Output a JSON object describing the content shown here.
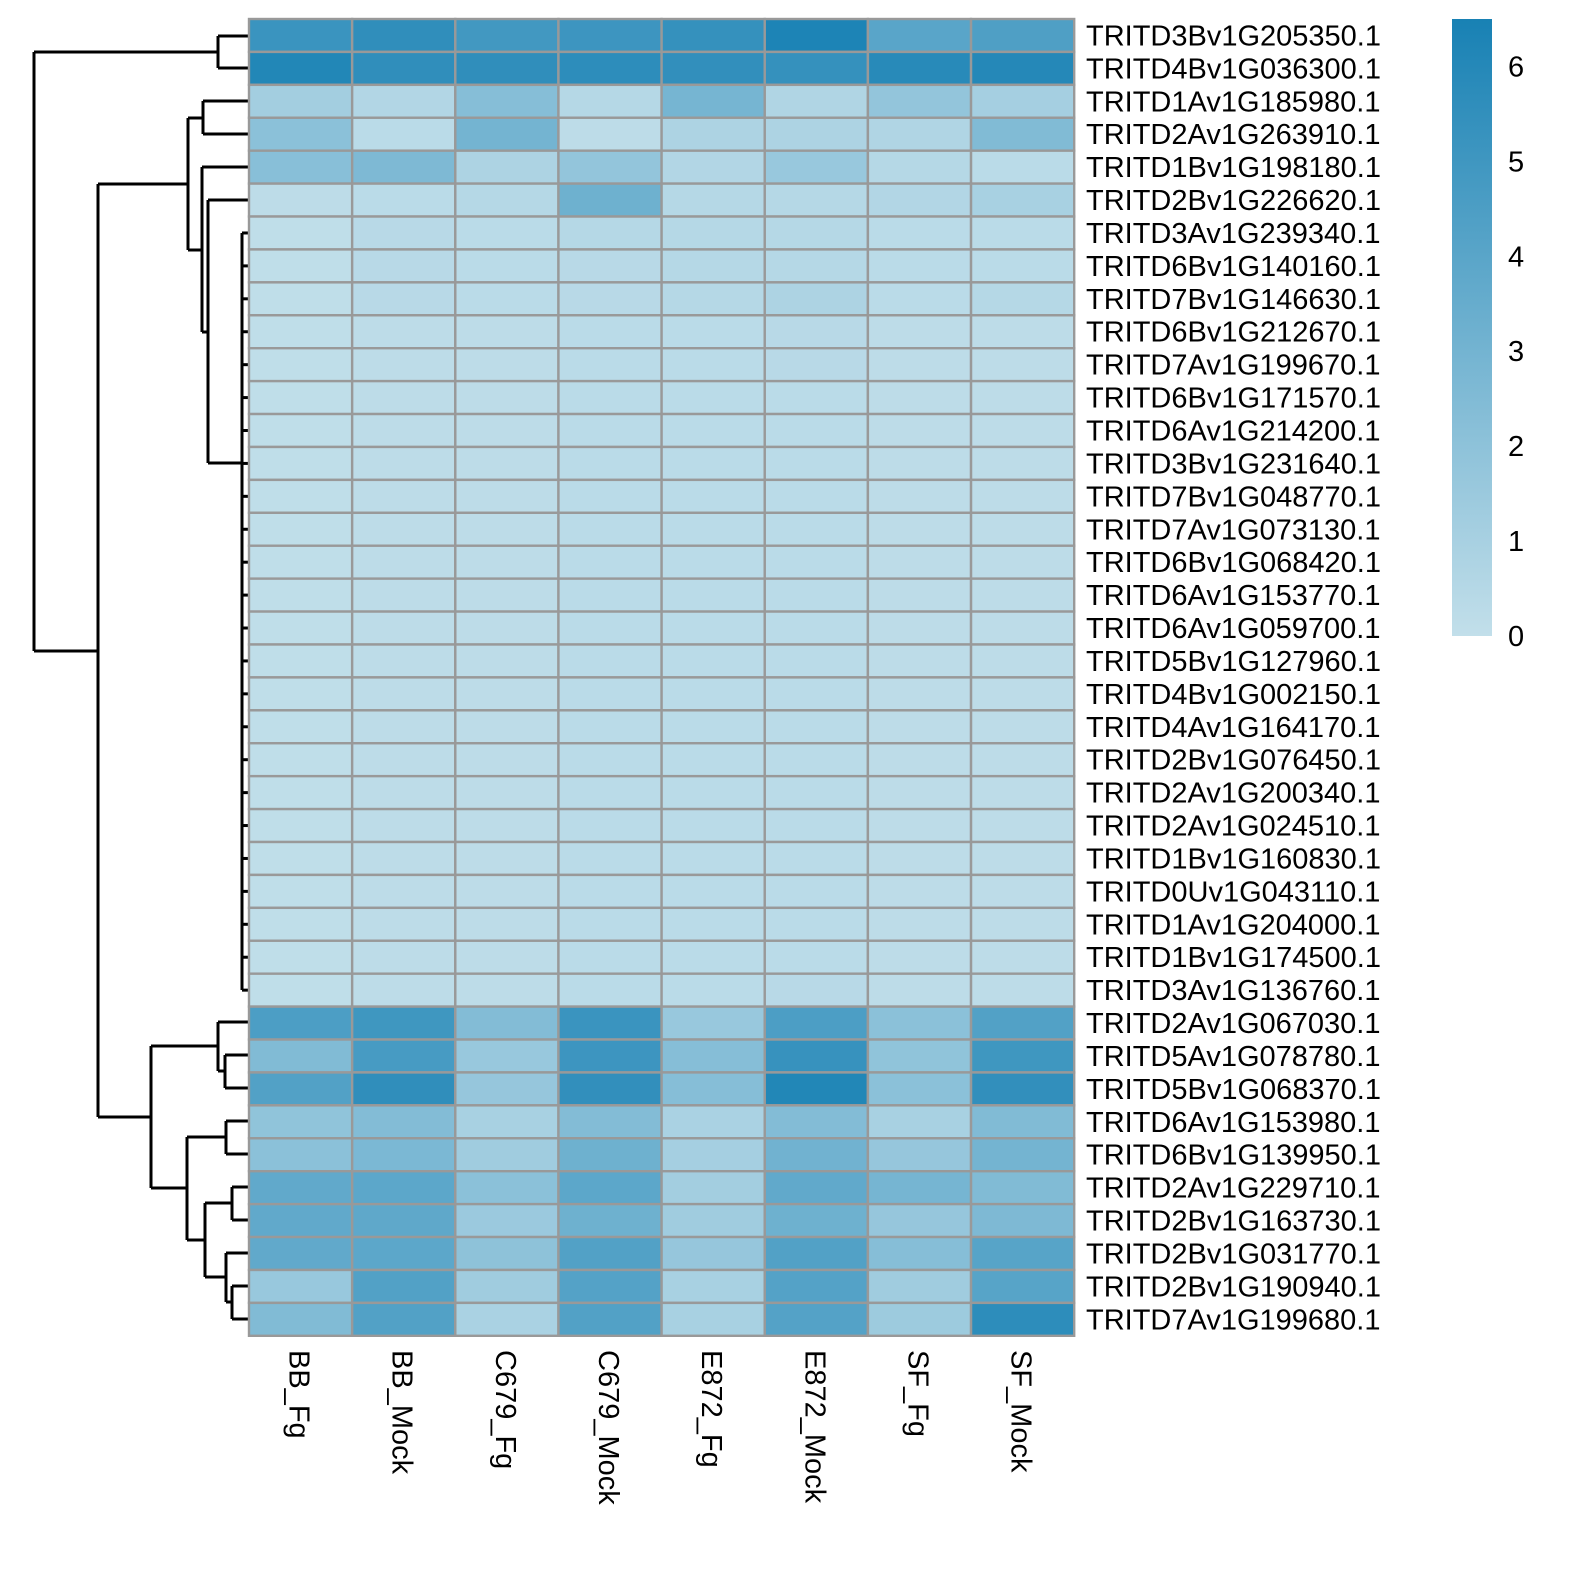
{
  "chart_data": {
    "type": "heatmap",
    "columns": [
      "BB_Fg",
      "BB_Mock",
      "C679_Fg",
      "C679_Mock",
      "E872_Fg",
      "E872_Mock",
      "SF_Fg",
      "SF_Mock"
    ],
    "rows": [
      "TRITD3Bv1G205350.1",
      "TRITD4Bv1G036300.1",
      "TRITD1Av1G185980.1",
      "TRITD2Av1G263910.1",
      "TRITD1Bv1G198180.1",
      "TRITD2Bv1G226620.1",
      "TRITD3Av1G239340.1",
      "TRITD6Bv1G140160.1",
      "TRITD7Bv1G146630.1",
      "TRITD6Bv1G212670.1",
      "TRITD7Av1G199670.1",
      "TRITD6Bv1G171570.1",
      "TRITD6Av1G214200.1",
      "TRITD3Bv1G231640.1",
      "TRITD7Bv1G048770.1",
      "TRITD7Av1G073130.1",
      "TRITD6Bv1G068420.1",
      "TRITD6Av1G153770.1",
      "TRITD6Av1G059700.1",
      "TRITD5Bv1G127960.1",
      "TRITD4Bv1G002150.1",
      "TRITD4Av1G164170.1",
      "TRITD2Bv1G076450.1",
      "TRITD2Av1G200340.1",
      "TRITD2Av1G024510.1",
      "TRITD1Bv1G160830.1",
      "TRITD0Uv1G043110.1",
      "TRITD1Av1G204000.1",
      "TRITD1Bv1G174500.1",
      "TRITD3Av1G136760.1",
      "TRITD2Av1G067030.1",
      "TRITD5Av1G078780.1",
      "TRITD5Bv1G068370.1",
      "TRITD6Av1G153980.1",
      "TRITD6Bv1G139950.1",
      "TRITD2Av1G229710.1",
      "TRITD2Bv1G163730.1",
      "TRITD2Bv1G031770.1",
      "TRITD2Bv1G190940.1",
      "TRITD7Av1G199680.1"
    ],
    "values": [
      [
        5.2,
        5.6,
        4.9,
        5.1,
        5.4,
        6.3,
        4.0,
        4.4
      ],
      [
        6.1,
        5.6,
        5.6,
        5.7,
        5.5,
        5.4,
        5.9,
        6.0
      ],
      [
        1.2,
        0.6,
        2.3,
        0.5,
        2.9,
        0.7,
        1.8,
        1.1
      ],
      [
        2.1,
        0.3,
        3.0,
        0.2,
        0.8,
        0.8,
        0.7,
        2.5
      ],
      [
        2.2,
        2.6,
        0.8,
        1.8,
        0.6,
        1.6,
        0.5,
        0.3
      ],
      [
        0.2,
        0.3,
        0.5,
        3.2,
        0.5,
        0.5,
        0.6,
        1.0
      ],
      [
        0.1,
        0.4,
        0.3,
        0.5,
        0.5,
        0.5,
        0.3,
        0.3
      ],
      [
        0.1,
        0.4,
        0.3,
        0.4,
        0.5,
        0.5,
        0.3,
        0.3
      ],
      [
        0.1,
        0.4,
        0.3,
        0.4,
        0.5,
        0.8,
        0.3,
        0.5
      ],
      [
        0.1,
        0.2,
        0.2,
        0.3,
        0.3,
        0.4,
        0.2,
        0.2
      ],
      [
        0.1,
        0.2,
        0.2,
        0.3,
        0.3,
        0.4,
        0.2,
        0.2
      ],
      [
        0.1,
        0.2,
        0.2,
        0.3,
        0.3,
        0.3,
        0.2,
        0.2
      ],
      [
        0.1,
        0.2,
        0.2,
        0.3,
        0.3,
        0.3,
        0.2,
        0.2
      ],
      [
        0.1,
        0.2,
        0.2,
        0.3,
        0.3,
        0.3,
        0.2,
        0.2
      ],
      [
        0.1,
        0.2,
        0.2,
        0.3,
        0.3,
        0.3,
        0.2,
        0.2
      ],
      [
        0.1,
        0.2,
        0.2,
        0.3,
        0.3,
        0.3,
        0.2,
        0.2
      ],
      [
        0.1,
        0.2,
        0.2,
        0.3,
        0.3,
        0.3,
        0.2,
        0.2
      ],
      [
        0.1,
        0.2,
        0.2,
        0.3,
        0.3,
        0.3,
        0.2,
        0.2
      ],
      [
        0.1,
        0.2,
        0.2,
        0.3,
        0.3,
        0.3,
        0.2,
        0.2
      ],
      [
        0.1,
        0.2,
        0.2,
        0.3,
        0.3,
        0.3,
        0.2,
        0.2
      ],
      [
        0.1,
        0.2,
        0.2,
        0.3,
        0.3,
        0.3,
        0.2,
        0.2
      ],
      [
        0.1,
        0.2,
        0.2,
        0.3,
        0.3,
        0.3,
        0.2,
        0.2
      ],
      [
        0.1,
        0.2,
        0.2,
        0.3,
        0.3,
        0.3,
        0.2,
        0.2
      ],
      [
        0.1,
        0.2,
        0.2,
        0.3,
        0.3,
        0.3,
        0.2,
        0.2
      ],
      [
        0.1,
        0.2,
        0.2,
        0.3,
        0.3,
        0.3,
        0.2,
        0.2
      ],
      [
        0.1,
        0.2,
        0.2,
        0.3,
        0.3,
        0.3,
        0.2,
        0.2
      ],
      [
        0.1,
        0.2,
        0.2,
        0.3,
        0.3,
        0.3,
        0.2,
        0.2
      ],
      [
        0.1,
        0.2,
        0.2,
        0.3,
        0.3,
        0.3,
        0.2,
        0.2
      ],
      [
        0.1,
        0.2,
        0.2,
        0.3,
        0.3,
        0.3,
        0.2,
        0.2
      ],
      [
        0.1,
        0.2,
        0.2,
        0.3,
        0.3,
        0.4,
        0.2,
        0.2
      ],
      [
        4.5,
        5.0,
        2.4,
        5.2,
        1.6,
        4.5,
        2.1,
        4.3
      ],
      [
        2.5,
        4.7,
        1.6,
        5.1,
        2.3,
        5.3,
        1.9,
        5.0
      ],
      [
        4.3,
        5.6,
        1.7,
        5.5,
        2.3,
        6.1,
        2.1,
        5.5
      ],
      [
        1.9,
        2.4,
        1.0,
        2.4,
        0.9,
        2.4,
        1.0,
        2.5
      ],
      [
        2.1,
        2.7,
        1.3,
        3.2,
        1.1,
        3.1,
        1.7,
        3.0
      ],
      [
        3.7,
        3.9,
        2.1,
        3.9,
        1.2,
        3.7,
        2.9,
        2.5
      ],
      [
        3.7,
        3.8,
        1.5,
        3.2,
        1.3,
        3.2,
        1.7,
        2.6
      ],
      [
        3.7,
        3.9,
        2.0,
        4.3,
        1.7,
        4.3,
        2.3,
        4.1
      ],
      [
        1.6,
        4.3,
        1.3,
        4.2,
        1.0,
        4.2,
        1.3,
        4.1
      ],
      [
        2.5,
        4.3,
        0.9,
        4.3,
        1.0,
        4.2,
        1.4,
        5.7
      ]
    ],
    "vmin": 0,
    "vmax": 6.5,
    "colorbar_ticks": [
      0,
      1,
      2,
      3,
      4,
      5,
      6
    ],
    "color_low": "#c2dfea",
    "color_high": "#1881b4",
    "cell_border_color": "#999999",
    "row_dendrogram": true,
    "legend_position": "top-right"
  }
}
